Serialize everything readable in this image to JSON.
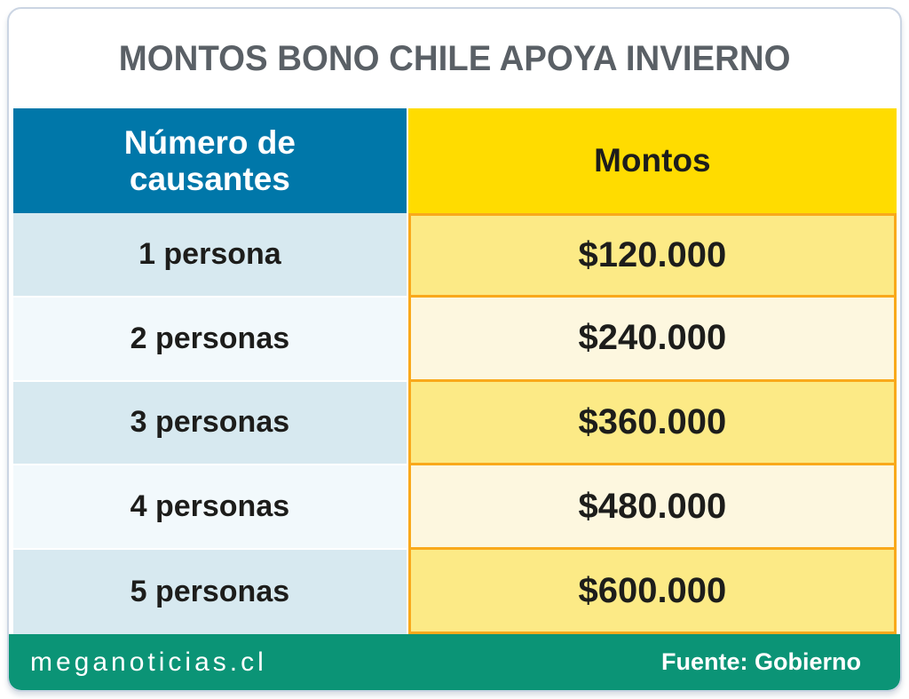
{
  "title": "MONTOS BONO CHILE APOYA INVIERNO",
  "table": {
    "col_headers": [
      "Número de causantes",
      "Montos"
    ],
    "rows": [
      {
        "causantes": "1 persona",
        "monto": "$120.000"
      },
      {
        "causantes": "2 personas",
        "monto": "$240.000"
      },
      {
        "causantes": "3 personas",
        "monto": "$360.000"
      },
      {
        "causantes": "4 personas",
        "monto": "$480.000"
      },
      {
        "causantes": "5 personas",
        "monto": "$600.000"
      }
    ]
  },
  "footer": {
    "site": "meganoticias.cl",
    "source": "Fuente: Gobierno"
  },
  "colors": {
    "header_blue": "#0077A9",
    "header_yellow": "#FFDC00",
    "row_blue_dark": "#D7E9F0",
    "row_blue_light": "#F2F9FC",
    "row_yellow_dark": "#FCEA86",
    "row_yellow_light": "#FDF7DF",
    "amount_cell_border": "#F9A91B",
    "footer_green": "#0B9476",
    "title_text": "#5A6066",
    "dark_text": "#1D1D1B",
    "card_border": "#CBD5E3"
  },
  "chart_data": {
    "type": "table",
    "title": "MONTOS BONO CHILE APOYA INVIERNO",
    "columns": [
      "Número de causantes",
      "Montos"
    ],
    "rows": [
      [
        "1 persona",
        "$120.000"
      ],
      [
        "2 personas",
        "$240.000"
      ],
      [
        "3 personas",
        "$360.000"
      ],
      [
        "4 personas",
        "$480.000"
      ],
      [
        "5 personas",
        "$600.000"
      ]
    ],
    "values_clp": [
      120000,
      240000,
      360000,
      480000,
      600000
    ]
  }
}
